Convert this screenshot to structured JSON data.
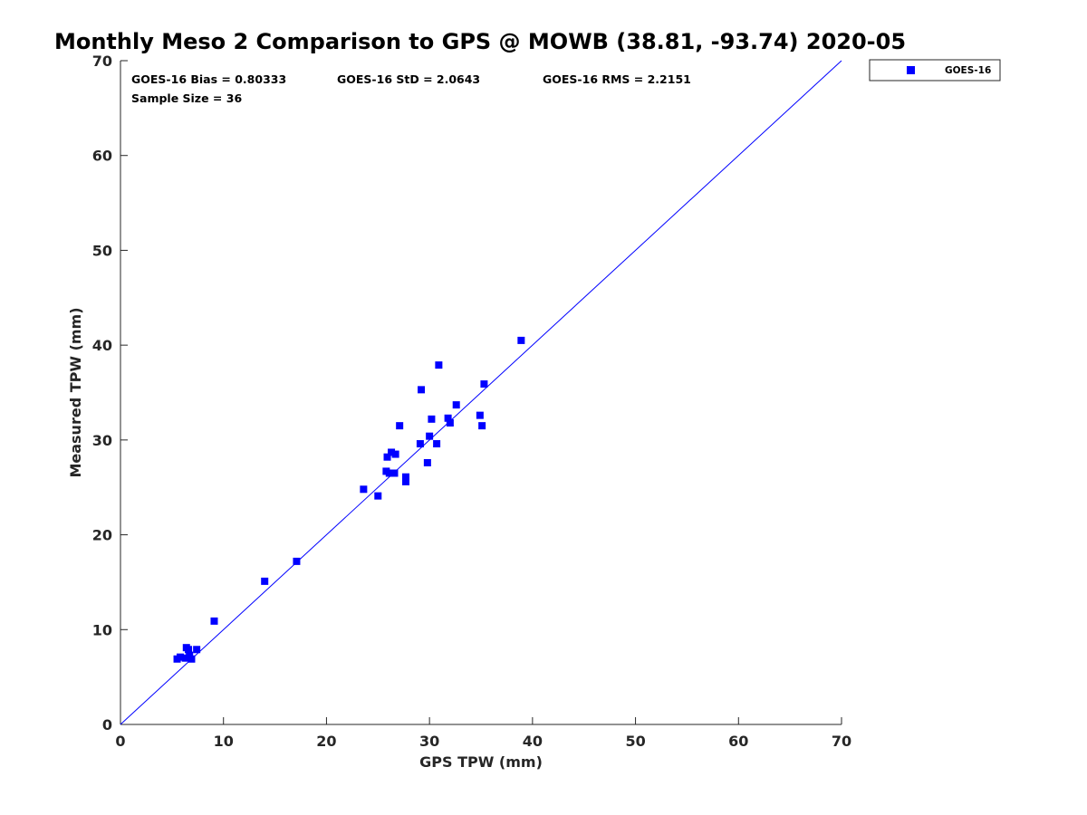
{
  "chart_data": {
    "type": "scatter",
    "title": "Monthly Meso 2 Comparison to GPS @ MOWB (38.81, -93.74) 2020-05",
    "xlabel": "GPS TPW (mm)",
    "ylabel": "Measured TPW (mm)",
    "xlim": [
      0,
      70
    ],
    "ylim": [
      0,
      70
    ],
    "x_ticks": [
      0,
      10,
      20,
      30,
      40,
      50,
      60,
      70
    ],
    "y_ticks": [
      0,
      10,
      20,
      30,
      40,
      50,
      60,
      70
    ],
    "x_tick_labels": [
      "0",
      "10",
      "20",
      "30",
      "40",
      "50",
      "60",
      "70"
    ],
    "y_tick_labels": [
      "0",
      "10",
      "20",
      "30",
      "40",
      "50",
      "60",
      "70"
    ],
    "grid": false,
    "reference_line": {
      "x": [
        0,
        70
      ],
      "y": [
        0,
        70
      ],
      "color": "#0000ff"
    },
    "series": [
      {
        "name": "GOES-16",
        "marker": "square",
        "color": "#0000ff",
        "x": [
          5.5,
          5.8,
          6.3,
          6.4,
          6.6,
          6.7,
          6.9,
          7.4,
          9.1,
          14.0,
          17.1,
          23.6,
          25.0,
          25.8,
          25.9,
          26.1,
          26.3,
          26.6,
          26.7,
          27.1,
          27.7,
          27.7,
          29.1,
          29.2,
          29.8,
          30.0,
          30.2,
          30.7,
          30.9,
          31.8,
          32.0,
          32.6,
          34.9,
          35.1,
          35.3,
          38.9
        ],
        "y": [
          6.9,
          7.1,
          7.0,
          8.1,
          7.9,
          7.3,
          6.9,
          7.9,
          10.9,
          15.1,
          17.2,
          24.8,
          24.1,
          26.7,
          28.2,
          26.5,
          28.7,
          26.5,
          28.5,
          31.5,
          26.1,
          25.6,
          29.6,
          35.3,
          27.6,
          30.4,
          32.2,
          29.6,
          37.9,
          32.3,
          31.8,
          33.7,
          32.6,
          31.5,
          35.9,
          40.5
        ]
      }
    ],
    "legend": {
      "position": "outside-top-right",
      "entries": [
        "GOES-16"
      ]
    },
    "annotations": {
      "bias": "GOES-16 Bias = 0.80333",
      "std": "GOES-16 StD = 2.0643",
      "rms": "GOES-16 RMS = 2.2151",
      "sample_size": "Sample Size = 36"
    }
  }
}
